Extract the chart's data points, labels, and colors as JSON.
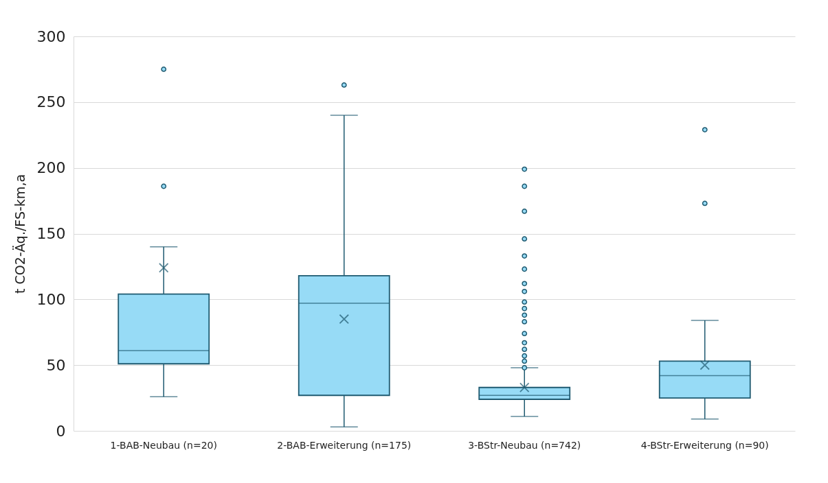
{
  "chart_data": {
    "type": "box",
    "ylabel": "t CO2-Äq./FS-km,a",
    "categories": [
      "1-BAB-Neubau (n=20)",
      "2-BAB-Erweiterung (n=175)",
      "3-BStr-Neubau (n=742)",
      "4-BStr-Erweiterung (n=90)"
    ],
    "series": [
      {
        "color": "#97dbf6",
        "boxes": [
          {
            "low": 26,
            "q1": 51,
            "median": 61,
            "q3": 104,
            "high": 140,
            "mean": 124,
            "outliers": [
              275,
              186
            ]
          },
          {
            "low": 3,
            "q1": 27,
            "median": 97,
            "q3": 118,
            "high": 240,
            "mean": 85,
            "outliers": [
              263
            ]
          },
          {
            "low": 11,
            "q1": 24,
            "median": 27,
            "q3": 33,
            "high": 48,
            "mean": 33,
            "outliers": [
              199,
              186,
              167,
              146,
              133,
              123,
              112,
              106,
              98,
              93,
              88,
              83,
              74,
              67,
              62,
              57,
              53,
              48
            ]
          },
          {
            "low": 9,
            "q1": 25,
            "median": 42,
            "q3": 53,
            "high": 84,
            "mean": 50,
            "outliers": [
              229,
              173
            ]
          }
        ]
      }
    ],
    "ylim": [
      0,
      300
    ],
    "yticks": [
      0,
      50,
      100,
      150,
      200,
      250,
      300
    ],
    "grid": "y"
  }
}
